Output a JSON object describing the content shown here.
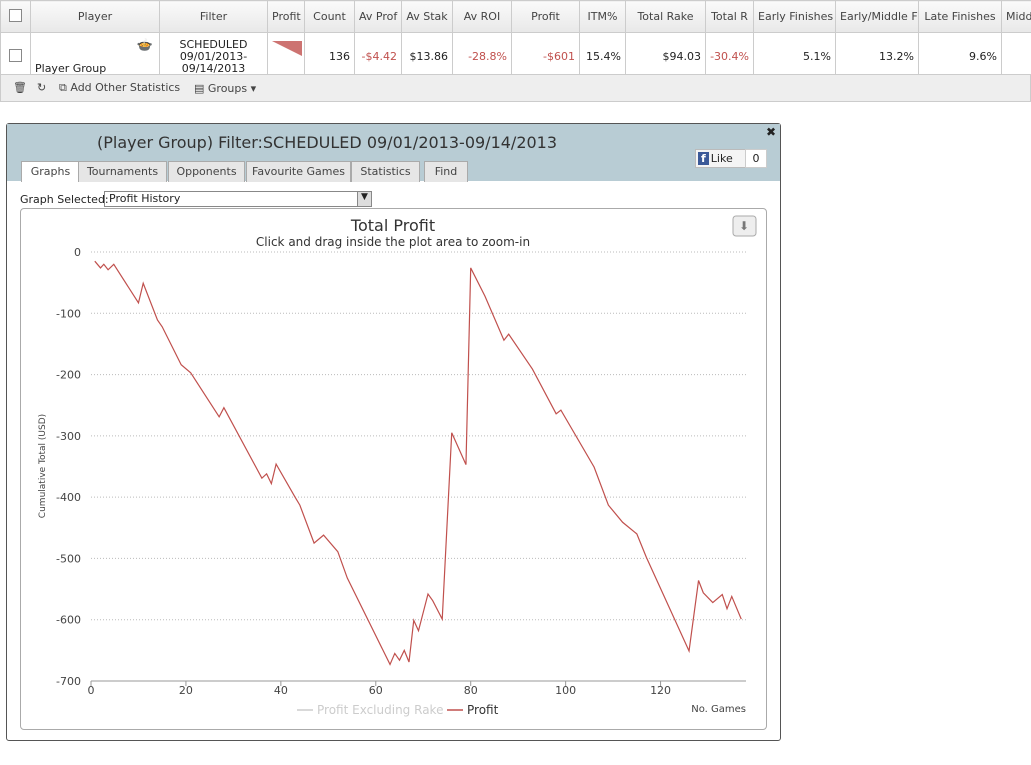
{
  "table": {
    "header": [
      "Player",
      "Filter",
      "Profit",
      "Count",
      "Av Prof",
      "Av Stak",
      "Av ROI",
      "Profit",
      "ITM%",
      "Total Rake",
      "Total R",
      "Early Finishes",
      "Early/Middle F",
      "Late Finishes",
      "Midd"
    ],
    "row": {
      "player": "Player Group",
      "filter": [
        "SCHEDULED",
        "09/01/2013-",
        "09/14/2013"
      ],
      "stats": [
        "136",
        "-$4.42",
        "$13.86",
        "-28.8%",
        "-$601",
        "15.4%",
        "$94.03",
        "-30.4%",
        "5.1%",
        "13.2%",
        "9.6%"
      ]
    }
  },
  "toolbar": {
    "add": "Add Other Statistics",
    "groups": "Groups"
  },
  "dialog": {
    "title": "(Player Group) Filter:SCHEDULED 09/01/2013-09/14/2013",
    "tabs": [
      "Graphs",
      "Tournaments",
      "Opponents",
      "Favourite Games",
      "Statistics",
      "Find"
    ],
    "like": "Like",
    "like_count": "0",
    "graph_label": "Graph Selected:",
    "graph_selected": "Profit History"
  },
  "chart_data": {
    "type": "line",
    "title": "Total Profit",
    "subtitle": "Click and drag inside the plot area to zoom-in",
    "y_label": "Cumulative Total (USD)",
    "x_label": "No. Games",
    "x": [
      0.8,
      2,
      2.7,
      3.6,
      4.8,
      10,
      11,
      14,
      15,
      19,
      21,
      27,
      28,
      36,
      37,
      38,
      39,
      43,
      44,
      47,
      49,
      52,
      54,
      63,
      64,
      65,
      66,
      67,
      68,
      69,
      71,
      72,
      74,
      76,
      79,
      80,
      83,
      87,
      88,
      93,
      98,
      99,
      106,
      109,
      112,
      115,
      117,
      126,
      128,
      129,
      131,
      133,
      134,
      135,
      137
    ],
    "series": [
      {
        "name": "Profit",
        "color": "#c0504d",
        "values": [
          -15,
          -26,
          -20,
          -29,
          -20,
          -83,
          -51,
          -111,
          -122,
          -184,
          -197,
          -269,
          -254,
          -369,
          -362,
          -378,
          -346,
          -400,
          -413,
          -475,
          -462,
          -489,
          -532,
          -673,
          -655,
          -666,
          -650,
          -669,
          -601,
          -618,
          -558,
          -569,
          -599,
          -295,
          -347,
          -26,
          -72,
          -144,
          -134,
          -191,
          -264,
          -258,
          -351,
          -413,
          -441,
          -460,
          -498,
          -651,
          -536,
          -556,
          -572,
          -559,
          -582,
          -562,
          -599
        ]
      }
    ],
    "hidden_series": [
      {
        "name": "Profit Excluding Rake",
        "color": "#cccccc"
      }
    ],
    "xlim": [
      0,
      138
    ],
    "xticks": [
      0,
      20,
      40,
      60,
      80,
      100,
      120
    ],
    "ylim": [
      -700,
      0
    ],
    "yticks": [
      0,
      -100,
      -200,
      -300,
      -400,
      -500,
      -600,
      -700
    ],
    "grid": true
  }
}
